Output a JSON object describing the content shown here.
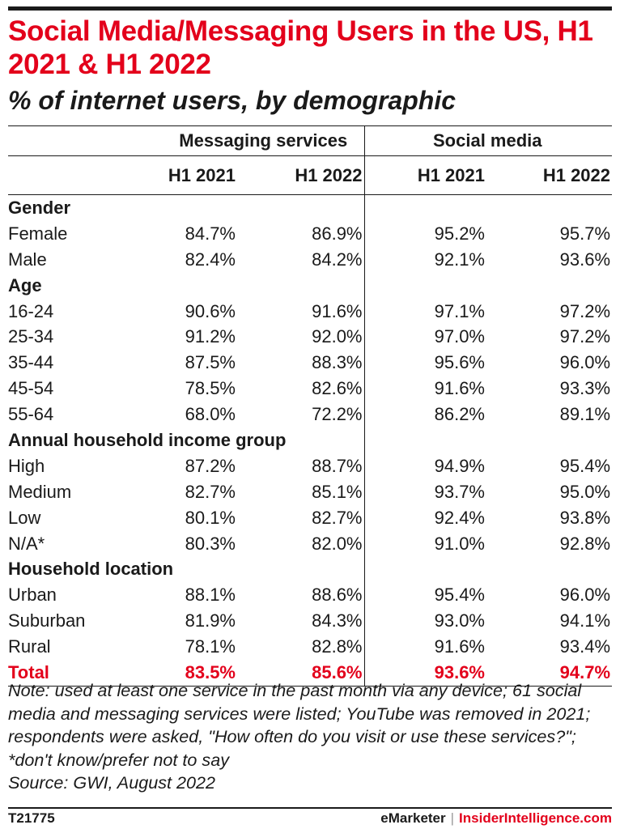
{
  "chart_data": {
    "type": "table",
    "title": "Social Media/Messaging Users in the US, H1 2021 & H1 2022",
    "subtitle": "% of internet users, by demographic",
    "column_groups": [
      "Messaging services",
      "Social media"
    ],
    "columns": [
      "H1 2021",
      "H1 2022",
      "H1 2021",
      "H1 2022"
    ],
    "rows": [
      {
        "label": "Gender",
        "section": true,
        "values": [
          "",
          "",
          "",
          ""
        ]
      },
      {
        "label": "Female",
        "values": [
          "84.7%",
          "86.9%",
          "95.2%",
          "95.7%"
        ]
      },
      {
        "label": "Male",
        "values": [
          "82.4%",
          "84.2%",
          "92.1%",
          "93.6%"
        ]
      },
      {
        "label": "Age",
        "section": true,
        "values": [
          "",
          "",
          "",
          ""
        ]
      },
      {
        "label": "16-24",
        "values": [
          "90.6%",
          "91.6%",
          "97.1%",
          "97.2%"
        ]
      },
      {
        "label": "25-34",
        "values": [
          "91.2%",
          "92.0%",
          "97.0%",
          "97.2%"
        ]
      },
      {
        "label": "35-44",
        "values": [
          "87.5%",
          "88.3%",
          "95.6%",
          "96.0%"
        ]
      },
      {
        "label": "45-54",
        "values": [
          "78.5%",
          "82.6%",
          "91.6%",
          "93.3%"
        ]
      },
      {
        "label": "55-64",
        "values": [
          "68.0%",
          "72.2%",
          "86.2%",
          "89.1%"
        ]
      },
      {
        "label": "Annual household income group",
        "section": true,
        "values": [
          "",
          "",
          "",
          ""
        ]
      },
      {
        "label": "High",
        "values": [
          "87.2%",
          "88.7%",
          "94.9%",
          "95.4%"
        ]
      },
      {
        "label": "Medium",
        "values": [
          "82.7%",
          "85.1%",
          "93.7%",
          "95.0%"
        ]
      },
      {
        "label": "Low",
        "values": [
          "80.1%",
          "82.7%",
          "92.4%",
          "93.8%"
        ]
      },
      {
        "label": "N/A*",
        "values": [
          "80.3%",
          "82.0%",
          "91.0%",
          "92.8%"
        ]
      },
      {
        "label": "Household location",
        "section": true,
        "values": [
          "",
          "",
          "",
          ""
        ]
      },
      {
        "label": "Urban",
        "values": [
          "88.1%",
          "88.6%",
          "95.4%",
          "96.0%"
        ]
      },
      {
        "label": "Suburban",
        "values": [
          "81.9%",
          "84.3%",
          "93.0%",
          "94.1%"
        ]
      },
      {
        "label": "Rural",
        "values": [
          "78.1%",
          "82.8%",
          "91.6%",
          "93.4%"
        ]
      },
      {
        "label": "Total",
        "total": true,
        "values": [
          "83.5%",
          "85.6%",
          "93.6%",
          "94.7%"
        ]
      }
    ],
    "note": "Note: used at least one service in the past month via any device; 61 social media and messaging services were listed; YouTube was removed in 2021; respondents were asked, \"How often do you visit or use these services?\"; *don't know/prefer not to say",
    "source": "Source: GWI, August 2022"
  },
  "footer": {
    "id": "T21775",
    "brand_em": "eMarketer",
    "brand_sep": "|",
    "brand_ii": "InsiderIntelligence.com"
  },
  "colors": {
    "accent": "#e3001b",
    "text": "#1a1a1a"
  }
}
